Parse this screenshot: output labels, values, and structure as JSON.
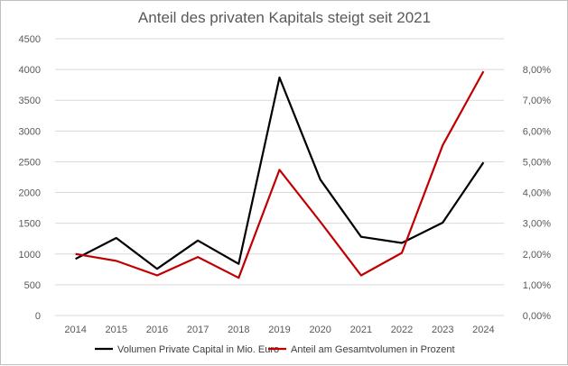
{
  "chart_data": {
    "type": "line",
    "title": "Anteil des privaten Kapitals steigt seit 2021",
    "categories": [
      "2014",
      "2015",
      "2016",
      "2017",
      "2018",
      "2019",
      "2020",
      "2021",
      "2022",
      "2023",
      "2024"
    ],
    "y_left": {
      "min": 0,
      "max": 4500,
      "ticks": [
        "0",
        "500",
        "1000",
        "1500",
        "2000",
        "2500",
        "3000",
        "3500",
        "4000",
        "4500"
      ]
    },
    "y_right": {
      "min": 0,
      "max": 8,
      "ticks": [
        "0,00%",
        "1,00%",
        "2,00%",
        "3,00%",
        "4,00%",
        "5,00%",
        "6,00%",
        "7,00%",
        "8,00%"
      ]
    },
    "grid": true,
    "legend_position": "bottom",
    "series": [
      {
        "name": "Volumen Private Capital in Mio. Euro",
        "axis": "left",
        "color": "#000000",
        "values": [
          920,
          1260,
          760,
          1220,
          840,
          3870,
          2210,
          1280,
          1180,
          1510,
          2490
        ]
      },
      {
        "name": "Anteil am Gesamtvolumen in Prozent",
        "axis": "right",
        "color": "#c00000",
        "values": [
          1.78,
          1.58,
          1.16,
          1.69,
          1.09,
          4.21,
          2.71,
          1.16,
          1.81,
          4.92,
          7.06
        ]
      }
    ]
  }
}
